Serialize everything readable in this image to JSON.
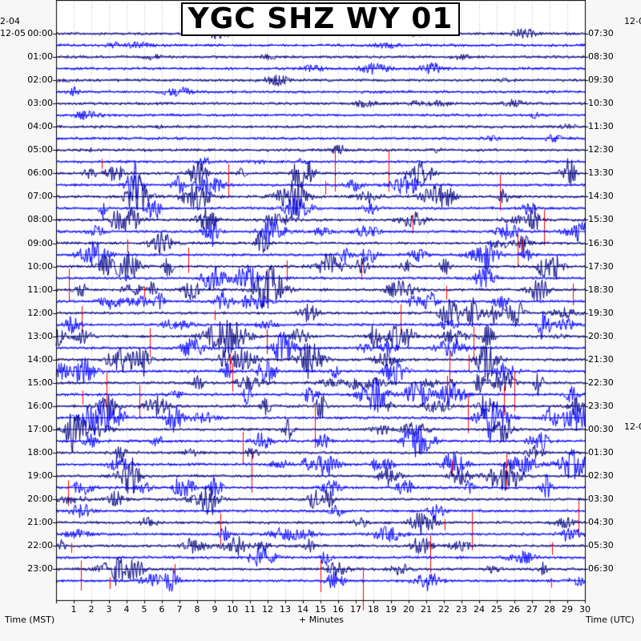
{
  "title": "YGC SHZ WY 01",
  "left_axis": {
    "label": "Time (MST)",
    "top_date": "2-04",
    "start_date": "12-05"
  },
  "right_axis": {
    "label": "Time (UTC)",
    "top_date": "12-0",
    "mid_date": "12-0"
  },
  "x_axis_label": "+ Minutes",
  "colors": [
    "#000080",
    "#ff0000",
    "#0000ff"
  ],
  "chart_data": {
    "type": "helicorder",
    "station": "YGC",
    "channel": "SHZ",
    "network": "WY",
    "location": "01",
    "x_label": "+ Minutes",
    "x_ticks": [
      "1",
      "2",
      "3",
      "4",
      "5",
      "6",
      "7",
      "8",
      "9",
      "10",
      "11",
      "12",
      "13",
      "14",
      "15",
      "16",
      "17",
      "18",
      "19",
      "20",
      "21",
      "22",
      "23",
      "24",
      "25",
      "26",
      "27",
      "28",
      "29",
      "30"
    ],
    "x_range": [
      0,
      30
    ],
    "rows_per_hour": 2,
    "row_count": 48,
    "left_hour_labels": [
      "00:00",
      "01:00",
      "02:00",
      "03:00",
      "04:00",
      "05:00",
      "06:00",
      "07:00",
      "08:00",
      "09:00",
      "10:00",
      "11:00",
      "12:00",
      "13:00",
      "14:00",
      "15:00",
      "16:00",
      "17:00",
      "18:00",
      "19:00",
      "20:00",
      "21:00",
      "22:00",
      "23:00"
    ],
    "right_hour_labels": [
      "07:30",
      "08:30",
      "09:30",
      "10:30",
      "11:30",
      "12:30",
      "13:30",
      "14:30",
      "15:30",
      "16:30",
      "17:30",
      "18:30",
      "19:30",
      "20:30",
      "21:30",
      "22:30",
      "23:30",
      "00:30",
      "01:30",
      "02:30",
      "03:30",
      "04:30",
      "05:30",
      "06:30"
    ],
    "trace_color_cycle": [
      "#000080",
      "#ff0000",
      "#0000ff"
    ],
    "grid": true
  }
}
